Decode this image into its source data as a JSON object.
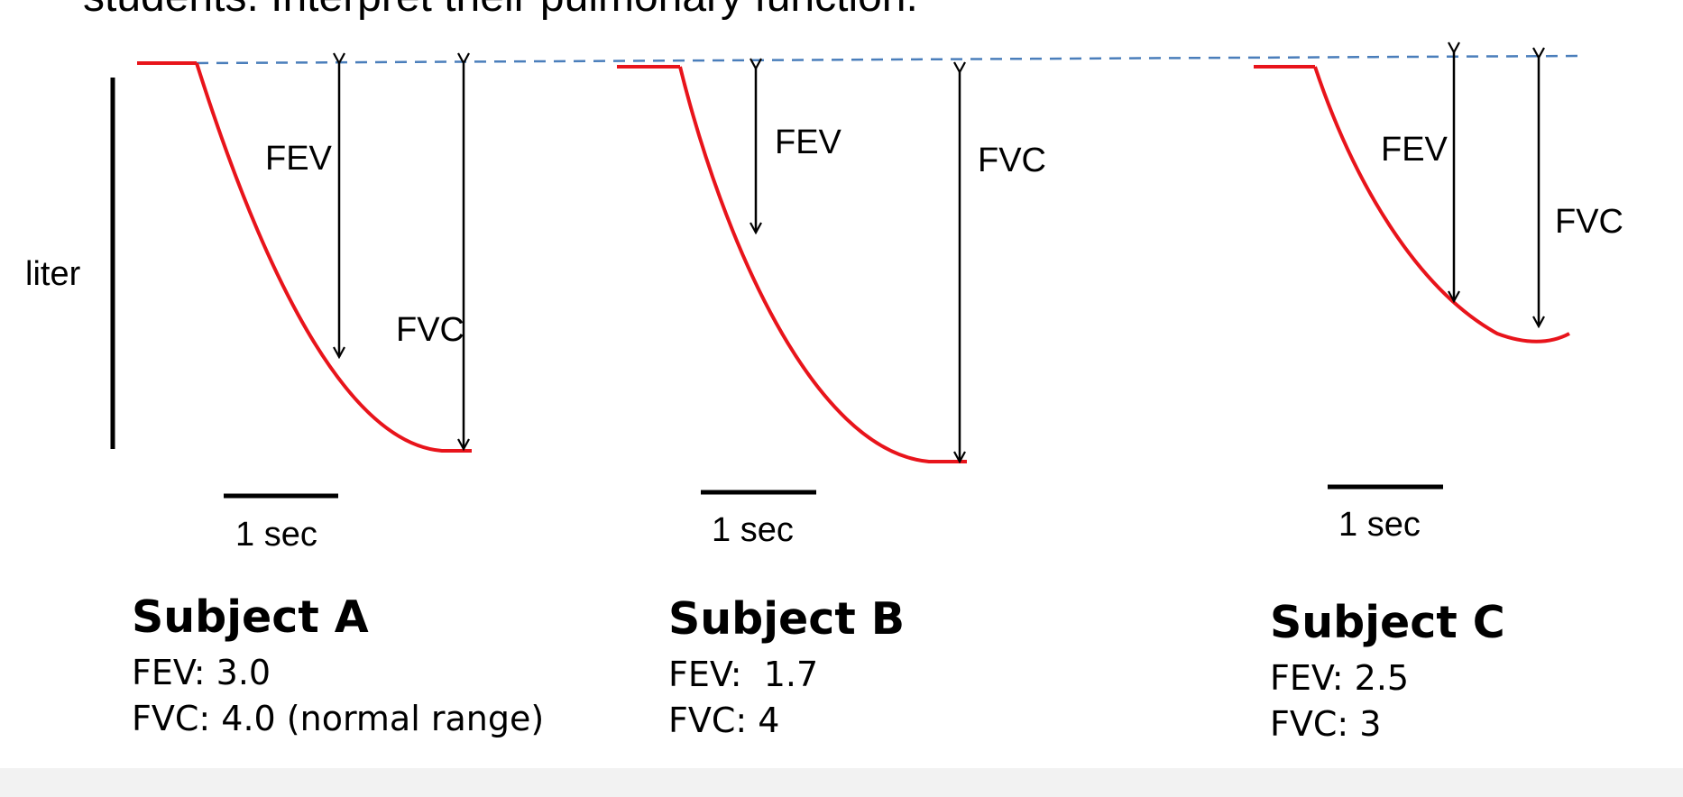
{
  "slide": {
    "heading": "students. Interpret their pulmonary function."
  },
  "y_axis_label": "liter",
  "time_scale_label": "1 sec",
  "colors": {
    "curve": "#e8141b",
    "baseline_dashed": "#4a7ebb",
    "arrow": "#000000",
    "scale_bar": "#000000"
  },
  "subjects": [
    {
      "id": "A",
      "title": "Subject A",
      "fev_line": "FEV: 3.0",
      "fvc_line": "FVC: 4.0 (normal range)",
      "fev_label": "FEV",
      "fvc_label": "FVC",
      "fev": 3.0,
      "fvc": 4.0
    },
    {
      "id": "B",
      "title": "Subject B",
      "fev_line": "FEV:  1.7",
      "fvc_line": "FVC: 4",
      "fev_label": "FEV",
      "fvc_label": "FVC",
      "fev": 1.7,
      "fvc": 4
    },
    {
      "id": "C",
      "title": "Subject C",
      "fev_line": "FEV: 2.5",
      "fvc_line": "FVC: 3",
      "fev_label": "FEV",
      "fvc_label": "FVC",
      "fev": 2.5,
      "fvc": 3
    }
  ]
}
